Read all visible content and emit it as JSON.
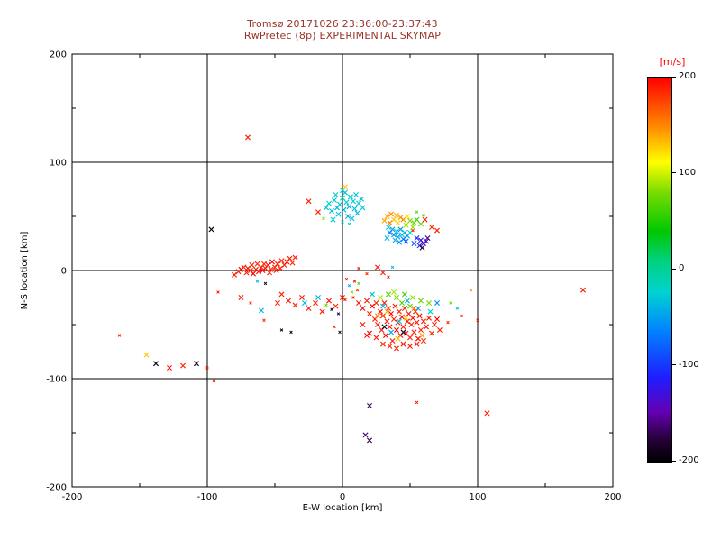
{
  "chart_data": {
    "type": "scatter",
    "title": "Tromsø 20171026 23:36:00-23:37:43",
    "subtitle": "RwPretec (8p) EXPERIMENTAL SKYMAP",
    "title_color": "#993326",
    "xlabel": "E-W location [km]",
    "ylabel": "N-S location [km]",
    "xlim": [
      -200,
      200
    ],
    "ylim": [
      -200,
      200
    ],
    "xticks": [
      -200,
      -100,
      0,
      100,
      200
    ],
    "yticks": [
      -200,
      -100,
      0,
      100,
      200
    ],
    "gridlines": [
      -100,
      0,
      100
    ],
    "grid": "on",
    "colorbar": {
      "label": "[m/s]",
      "label_color": "#ff0000",
      "min": -200,
      "max": 200,
      "ticks": [
        200,
        100,
        0,
        -100,
        -200
      ]
    },
    "colormap_stops": [
      [
        0.0,
        "#000000"
      ],
      [
        0.06,
        "#28003c"
      ],
      [
        0.13,
        "#6400b4"
      ],
      [
        0.22,
        "#1e1eff"
      ],
      [
        0.34,
        "#0082ff"
      ],
      [
        0.44,
        "#00d2d2"
      ],
      [
        0.52,
        "#00d282"
      ],
      [
        0.6,
        "#00c800"
      ],
      [
        0.7,
        "#78dc00"
      ],
      [
        0.78,
        "#ffff00"
      ],
      [
        0.87,
        "#ff8c00"
      ],
      [
        1.0,
        "#ff0000"
      ]
    ],
    "points_format": "[x_km, y_km, velocity_ms, small_flag(optional)]",
    "points": [
      [
        -80,
        -4,
        195
      ],
      [
        -77,
        -1,
        190
      ],
      [
        -75,
        1,
        200
      ],
      [
        -73,
        3,
        185
      ],
      [
        -71,
        -2,
        190
      ],
      [
        -70,
        2,
        195
      ],
      [
        -68,
        0,
        185
      ],
      [
        -67,
        5,
        190
      ],
      [
        -66,
        -3,
        200
      ],
      [
        -64,
        1,
        190
      ],
      [
        -63,
        6,
        185
      ],
      [
        -62,
        -1,
        195
      ],
      [
        -60,
        3,
        190
      ],
      [
        -59,
        0,
        200
      ],
      [
        -58,
        6,
        185
      ],
      [
        -57,
        2,
        190
      ],
      [
        -55,
        5,
        195
      ],
      [
        -54,
        -2,
        185
      ],
      [
        -53,
        1,
        190
      ],
      [
        -52,
        8,
        200
      ],
      [
        -50,
        3,
        190
      ],
      [
        -49,
        0,
        185
      ],
      [
        -48,
        6,
        195
      ],
      [
        -46,
        2,
        190
      ],
      [
        -45,
        9,
        185
      ],
      [
        -43,
        5,
        190
      ],
      [
        -41,
        8,
        195
      ],
      [
        -39,
        11,
        190
      ],
      [
        -37,
        7,
        185
      ],
      [
        -35,
        12,
        190
      ],
      [
        -63,
        -10,
        -35,
        1
      ],
      [
        -57,
        -12,
        -190,
        1
      ],
      [
        -70,
        123,
        190
      ],
      [
        -97,
        38,
        -195
      ],
      [
        -25,
        64,
        190
      ],
      [
        -18,
        54,
        185
      ],
      [
        -12,
        58,
        -30
      ],
      [
        -10,
        62,
        -25
      ],
      [
        -8,
        55,
        -35
      ],
      [
        -6,
        65,
        -30
      ],
      [
        -5,
        70,
        -20
      ],
      [
        -4,
        58,
        -40
      ],
      [
        -2,
        61,
        -30
      ],
      [
        0,
        67,
        -25
      ],
      [
        1,
        56,
        -35
      ],
      [
        2,
        72,
        -30
      ],
      [
        3,
        63,
        -20
      ],
      [
        5,
        59,
        -40
      ],
      [
        6,
        68,
        -30
      ],
      [
        8,
        64,
        -25
      ],
      [
        9,
        57,
        -35
      ],
      [
        10,
        70,
        -30
      ],
      [
        12,
        62,
        -25
      ],
      [
        14,
        66,
        -35
      ],
      [
        -3,
        52,
        -30
      ],
      [
        4,
        50,
        -40
      ],
      [
        7,
        48,
        -30
      ],
      [
        -7,
        47,
        -25
      ],
      [
        11,
        53,
        -35
      ],
      [
        15,
        58,
        -30
      ],
      [
        0,
        74,
        -25
      ],
      [
        2,
        77,
        130
      ],
      [
        -14,
        48,
        80,
        1
      ],
      [
        0,
        45,
        -30,
        1
      ],
      [
        5,
        43,
        -25,
        1
      ],
      [
        33,
        50,
        140
      ],
      [
        36,
        52,
        150
      ],
      [
        40,
        51,
        135
      ],
      [
        43,
        49,
        145
      ],
      [
        38,
        47,
        130
      ],
      [
        45,
        47,
        150
      ],
      [
        48,
        50,
        120
      ],
      [
        31,
        46,
        140
      ],
      [
        35,
        44,
        155
      ],
      [
        41,
        44,
        125
      ],
      [
        50,
        46,
        80
      ],
      [
        53,
        44,
        70
      ],
      [
        47,
        42,
        90
      ],
      [
        55,
        47,
        60
      ],
      [
        58,
        43,
        75
      ],
      [
        52,
        40,
        85
      ],
      [
        55,
        54,
        70,
        1
      ],
      [
        60,
        51,
        60,
        1
      ],
      [
        34,
        40,
        -30
      ],
      [
        37,
        38,
        -45
      ],
      [
        40,
        36,
        -35
      ],
      [
        43,
        38,
        -55
      ],
      [
        46,
        35,
        -40
      ],
      [
        38,
        33,
        -60
      ],
      [
        41,
        31,
        -50
      ],
      [
        44,
        33,
        -30
      ],
      [
        35,
        35,
        -70
      ],
      [
        48,
        32,
        -45
      ],
      [
        50,
        35,
        -25
      ],
      [
        33,
        30,
        -40
      ],
      [
        45,
        29,
        -65
      ],
      [
        39,
        28,
        -35
      ],
      [
        42,
        26,
        -55
      ],
      [
        47,
        27,
        -80
      ],
      [
        55,
        30,
        -110
      ],
      [
        58,
        28,
        -120
      ],
      [
        60,
        25,
        -150
      ],
      [
        57,
        23,
        -100
      ],
      [
        62,
        27,
        -130
      ],
      [
        53,
        25,
        -90
      ],
      [
        59,
        21,
        -180
      ],
      [
        63,
        30,
        -160
      ],
      [
        52,
        37,
        190,
        1
      ],
      [
        61,
        47,
        190
      ],
      [
        66,
        40,
        185
      ],
      [
        70,
        37,
        190
      ],
      [
        26,
        3,
        190
      ],
      [
        30,
        -2,
        185
      ],
      [
        34,
        -6,
        190,
        1
      ],
      [
        37,
        3,
        -35,
        1
      ],
      [
        12,
        2,
        190,
        1
      ],
      [
        18,
        -3,
        185,
        1
      ],
      [
        3,
        -8,
        190,
        1
      ],
      [
        5,
        -14,
        -40,
        1
      ],
      [
        7,
        -20,
        80,
        1
      ],
      [
        2,
        -27,
        190,
        1
      ],
      [
        9,
        -10,
        190,
        1
      ],
      [
        11,
        -18,
        185,
        1
      ],
      [
        8,
        -25,
        190,
        1
      ],
      [
        12,
        -12,
        70,
        1
      ],
      [
        -40,
        -28,
        190
      ],
      [
        -35,
        -32,
        185
      ],
      [
        -30,
        -25,
        190
      ],
      [
        -25,
        -35,
        190
      ],
      [
        -20,
        -30,
        185
      ],
      [
        -15,
        -38,
        190
      ],
      [
        -10,
        -28,
        190
      ],
      [
        -5,
        -33,
        185
      ],
      [
        0,
        -25,
        190
      ],
      [
        -45,
        -22,
        190
      ],
      [
        -48,
        -30,
        185
      ],
      [
        -28,
        -30,
        -35
      ],
      [
        -18,
        -25,
        -40
      ],
      [
        -12,
        -32,
        75,
        1
      ],
      [
        -8,
        -36,
        -195,
        1
      ],
      [
        -3,
        -40,
        -170,
        1
      ],
      [
        -60,
        -37,
        -35
      ],
      [
        -58,
        -46,
        190,
        1
      ],
      [
        -45,
        -55,
        -190,
        1
      ],
      [
        -38,
        -57,
        -195,
        1
      ],
      [
        -6,
        -52,
        190,
        1
      ],
      [
        -2,
        -57,
        -190,
        1
      ],
      [
        -92,
        -20,
        190,
        1
      ],
      [
        -75,
        -25,
        190
      ],
      [
        -68,
        -30,
        185,
        1
      ],
      [
        -95,
        -102,
        185,
        1
      ],
      [
        -165,
        -60,
        190,
        1
      ],
      [
        -145,
        -78,
        130
      ],
      [
        -138,
        -86,
        -195
      ],
      [
        -128,
        -90,
        190
      ],
      [
        -118,
        -88,
        185
      ],
      [
        -108,
        -86,
        -190
      ],
      [
        -100,
        -90,
        190,
        1
      ],
      [
        12,
        -30,
        190
      ],
      [
        15,
        -35,
        195
      ],
      [
        18,
        -28,
        185
      ],
      [
        20,
        -40,
        190
      ],
      [
        22,
        -33,
        200
      ],
      [
        24,
        -45,
        190
      ],
      [
        25,
        -30,
        185
      ],
      [
        26,
        -50,
        190
      ],
      [
        28,
        -38,
        195
      ],
      [
        29,
        -55,
        190
      ],
      [
        30,
        -42,
        185
      ],
      [
        31,
        -30,
        190
      ],
      [
        32,
        -60,
        200
      ],
      [
        33,
        -47,
        190
      ],
      [
        34,
        -35,
        185
      ],
      [
        35,
        -52,
        190
      ],
      [
        36,
        -40,
        195
      ],
      [
        37,
        -65,
        190
      ],
      [
        38,
        -45,
        185
      ],
      [
        39,
        -33,
        190
      ],
      [
        40,
        -55,
        200
      ],
      [
        41,
        -48,
        190
      ],
      [
        42,
        -38,
        185
      ],
      [
        43,
        -60,
        190
      ],
      [
        44,
        -43,
        195
      ],
      [
        45,
        -52,
        190
      ],
      [
        46,
        -35,
        185
      ],
      [
        47,
        -58,
        190
      ],
      [
        48,
        -47,
        200
      ],
      [
        49,
        -40,
        190
      ],
      [
        50,
        -62,
        185
      ],
      [
        51,
        -50,
        190
      ],
      [
        52,
        -44,
        195
      ],
      [
        53,
        -57,
        190
      ],
      [
        54,
        -38,
        185
      ],
      [
        55,
        -48,
        190
      ],
      [
        56,
        -63,
        200
      ],
      [
        57,
        -42,
        190
      ],
      [
        58,
        -55,
        185
      ],
      [
        60,
        -47,
        190
      ],
      [
        62,
        -52,
        195
      ],
      [
        64,
        -44,
        190
      ],
      [
        66,
        -58,
        185
      ],
      [
        68,
        -50,
        190
      ],
      [
        70,
        -45,
        200
      ],
      [
        72,
        -55,
        190
      ],
      [
        35,
        -70,
        185
      ],
      [
        40,
        -72,
        190
      ],
      [
        45,
        -68,
        195
      ],
      [
        50,
        -70,
        190
      ],
      [
        30,
        -68,
        185
      ],
      [
        25,
        -62,
        190
      ],
      [
        20,
        -58,
        200
      ],
      [
        55,
        -68,
        190
      ],
      [
        60,
        -65,
        185
      ],
      [
        15,
        -50,
        190
      ],
      [
        18,
        -60,
        195
      ],
      [
        28,
        -25,
        90
      ],
      [
        34,
        -22,
        70
      ],
      [
        40,
        -25,
        80
      ],
      [
        46,
        -22,
        60
      ],
      [
        52,
        -25,
        85
      ],
      [
        58,
        -28,
        75
      ],
      [
        44,
        -30,
        65
      ],
      [
        38,
        -20,
        90
      ],
      [
        50,
        -33,
        70
      ],
      [
        64,
        -30,
        80
      ],
      [
        22,
        -22,
        -30
      ],
      [
        30,
        -33,
        -40
      ],
      [
        48,
        -28,
        -35
      ],
      [
        56,
        -35,
        -50
      ],
      [
        42,
        -47,
        -30
      ],
      [
        36,
        -57,
        -45
      ],
      [
        65,
        -38,
        -25
      ],
      [
        70,
        -30,
        -60
      ],
      [
        85,
        -35,
        -30,
        1
      ],
      [
        26,
        -42,
        150
      ],
      [
        33,
        -38,
        140
      ],
      [
        47,
        -44,
        130
      ],
      [
        53,
        -35,
        155
      ],
      [
        59,
        -60,
        145
      ],
      [
        41,
        -63,
        135
      ],
      [
        31,
        -52,
        -190
      ],
      [
        45,
        -57,
        -180
      ],
      [
        80,
        -30,
        80,
        1
      ],
      [
        88,
        -42,
        190,
        1
      ],
      [
        95,
        -18,
        150,
        1
      ],
      [
        78,
        -48,
        190,
        1
      ],
      [
        100,
        -46,
        190,
        1
      ],
      [
        107,
        -132,
        190
      ],
      [
        55,
        -122,
        190,
        1
      ],
      [
        20,
        -125,
        -170
      ],
      [
        17,
        -152,
        -160
      ],
      [
        20,
        -157,
        -175
      ],
      [
        178,
        -18,
        190
      ]
    ]
  }
}
